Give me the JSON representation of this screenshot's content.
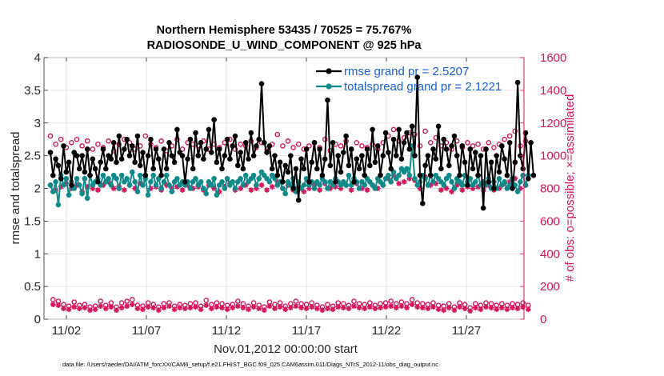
{
  "chart_data": {
    "type": "line",
    "title": "Northern Hemisphere 53435 / 70525 = 75.767%",
    "subtitle": "RADIOSONDE_U_WIND_COMPONENT @ 925 hPa",
    "xlabel": "Nov.01,2012 00:00:00 start",
    "ylabel": "rmse and totalspread",
    "y2label": "# of obs: o=possible; ×=assimilated",
    "footnote": "data file: /Users/raeder/DAI/ATM_forcXX/CAM6_setup/f.e21.FHIST_BGC.f09_025.CAM6assim.011/Diags_NTrS_2012-11/obs_diag_output.nc",
    "xlim": [
      0.6,
      30.6
    ],
    "ylim": [
      0,
      4
    ],
    "y2lim": [
      0,
      1600
    ],
    "x_tick_values": [
      2,
      7,
      12,
      17,
      22,
      27
    ],
    "x_tick_labels": [
      "11/02",
      "11/07",
      "11/12",
      "11/17",
      "11/22",
      "11/27"
    ],
    "y_ticks": [
      "0",
      "0.5",
      "1",
      "1.5",
      "2",
      "2.5",
      "3",
      "3.5",
      "4"
    ],
    "y2_ticks": [
      "0",
      "200",
      "400",
      "600",
      "800",
      "1000",
      "1200",
      "1400",
      "1600"
    ],
    "grid": true,
    "legend_position": "top-right",
    "colors": {
      "rmse": "#000000",
      "spread": "#0f8a8a",
      "obs": "#d6155c",
      "legend_text": "#1a5fd6"
    },
    "series": [
      {
        "name": "rmse grand pr = 2.5207",
        "axis": "left",
        "values": [
          2.55,
          2.2,
          2.45,
          2.35,
          2.15,
          2.65,
          2.25,
          2.4,
          2.05,
          2.55,
          2.5,
          2.3,
          2.5,
          2.25,
          2.6,
          2.2,
          2.45,
          2.3,
          2.1,
          2.4,
          2.6,
          2.3,
          2.5,
          2.45,
          2.7,
          2.4,
          2.8,
          2.45,
          2.6,
          2.75,
          2.5,
          2.65,
          2.4,
          2.8,
          2.35,
          2.55,
          2.2,
          2.5,
          2.75,
          2.3,
          2.6,
          2.45,
          2.2,
          2.6,
          2.3,
          2.7,
          2.5,
          2.4,
          2.9,
          2.55,
          2.5,
          2.1,
          2.45,
          2.75,
          2.3,
          2.85,
          2.5,
          2.7,
          2.45,
          2.6,
          2.9,
          2.55,
          3.05,
          2.4,
          2.6,
          2.3,
          2.5,
          2.75,
          2.45,
          2.65,
          2.8,
          2.35,
          2.55,
          2.3,
          2.7,
          2.45,
          2.85,
          2.5,
          2.65,
          2.75,
          3.6,
          2.7,
          2.55,
          2.65,
          2.3,
          2.5,
          2.2,
          2.4,
          2.1,
          2.35,
          2.25,
          2.5,
          2.0,
          2.3,
          1.82,
          2.45,
          2.3,
          2.6,
          2.1,
          2.4,
          2.7,
          2.3,
          2.6,
          2.2,
          2.45,
          3.35,
          2.35,
          2.7,
          2.1,
          2.5,
          2.25,
          2.55,
          2.8,
          2.35,
          2.6,
          2.1,
          2.45,
          2.3,
          2.5,
          2.2,
          2.6,
          2.35,
          2.9,
          2.4,
          2.65,
          2.2,
          2.5,
          2.85,
          2.55,
          2.3,
          2.75,
          2.5,
          2.9,
          2.45,
          2.7,
          2.85,
          2.6,
          2.95,
          2.5,
          3.7,
          2.2,
          1.77,
          2.35,
          2.5,
          2.2,
          2.6,
          2.45,
          2.95,
          2.3,
          2.75,
          2.6,
          2.35,
          2.65,
          2.8,
          2.5,
          2.2,
          2.65,
          2.4,
          2.05,
          2.6,
          2.3,
          2.55,
          2.2,
          2.5,
          1.7,
          2.6,
          2.1,
          2.4,
          2.0,
          2.5,
          2.25,
          2.65,
          2.45,
          2.2,
          2.7,
          2.0,
          2.4,
          3.62,
          2.5,
          2.3,
          2.85,
          2.15,
          2.7,
          2.2
        ]
      },
      {
        "name": "totalspread grand pr = 2.1221",
        "axis": "left",
        "values": [
          2.05,
          1.95,
          2.1,
          1.75,
          2.2,
          2.05,
          2.15,
          1.9,
          2.1,
          2.0,
          2.15,
          2.05,
          1.92,
          2.15,
          1.85,
          2.2,
          2.05,
          2.1,
          2.15,
          2.05,
          2.2,
          2.1,
          2.15,
          2.05,
          2.2,
          2.15,
          2.0,
          2.2,
          2.1,
          2.15,
          2.05,
          2.25,
          2.1,
          1.95,
          2.2,
          2.05,
          2.15,
          1.9,
          2.1,
          2.2,
          2.05,
          2.15,
          2.0,
          2.1,
          2.2,
          2.05,
          1.95,
          2.1,
          2.15,
          2.05,
          2.1,
          2.05,
          2.1,
          2.0,
          2.1,
          2.15,
          2.05,
          2.1,
          2.0,
          1.92,
          2.1,
          2.05,
          2.15,
          1.9,
          2.05,
          2.1,
          2.0,
          2.15,
          2.05,
          2.1,
          2.0,
          2.1,
          2.15,
          2.05,
          2.2,
          2.1,
          2.15,
          2.2,
          2.05,
          2.15,
          2.25,
          2.2,
          2.15,
          2.1,
          2.2,
          2.15,
          2.05,
          2.1,
          2.0,
          1.92,
          2.1,
          2.05,
          2.15,
          1.95,
          2.1,
          2.0,
          2.05,
          2.15,
          2.05,
          2.1,
          2.0,
          2.1,
          2.05,
          2.15,
          2.1,
          2.0,
          2.1,
          2.05,
          2.15,
          2.1,
          2.05,
          2.1,
          2.05,
          2.2,
          2.05,
          2.15,
          2.1,
          2.0,
          2.1,
          2.05,
          2.15,
          2.1,
          2.05,
          2.0,
          2.15,
          2.1,
          2.05,
          2.15,
          2.2,
          2.1,
          2.25,
          2.15,
          2.2,
          2.3,
          2.25,
          2.3,
          2.2,
          2.65,
          2.15,
          2.05,
          2.1,
          2.2,
          2.15,
          2.05,
          2.2,
          2.1,
          2.2,
          2.15,
          2.1,
          2.05,
          2.15,
          2.2,
          2.1,
          2.0,
          2.15,
          2.1,
          2.05,
          2.2,
          2.1,
          2.15,
          2.05,
          2.1,
          2.2,
          2.05,
          2.1,
          2.05,
          2.15,
          2.0,
          2.1,
          2.0,
          2.15,
          2.05,
          2.1,
          2.0,
          2.05,
          2.15,
          2.05,
          1.95,
          2.1,
          2.2,
          2.05,
          2.2
        ]
      },
      {
        "name": "possible",
        "axis": "right",
        "marker": "o",
        "values": [
          1120,
          120,
          1070,
          110,
          1100,
          90,
          1050,
          80,
          1080,
          105,
          1100,
          85,
          1060,
          90,
          1090,
          75,
          1040,
          80,
          1070,
          110,
          1050,
          85,
          1090,
          100,
          1030,
          75,
          1070,
          100,
          1100,
          110,
          1080,
          120,
          1040,
          85,
          1060,
          80,
          1120,
          100,
          1070,
          90,
          1050,
          75,
          1090,
          95,
          1030,
          100,
          1060,
          80,
          1100,
          90,
          1040,
          85,
          1080,
          95,
          1070,
          100,
          1060,
          80,
          1090,
          115,
          1040,
          90,
          1070,
          100,
          1050,
          95,
          1080,
          85,
          1100,
          90,
          1040,
          110,
          1070,
          95,
          1060,
          80,
          1090,
          100,
          1050,
          85,
          1080,
          75,
          1040,
          105,
          1070,
          90,
          1130,
          100,
          1060,
          80,
          1090,
          95,
          1050,
          110,
          1070,
          95,
          1040,
          90,
          1060,
          100,
          1080,
          85,
          1050,
          75,
          1100,
          90,
          1030,
          80,
          1070,
          100,
          1060,
          95,
          1090,
          85,
          1040,
          110,
          1080,
          95,
          1060,
          90,
          1050,
          100,
          1070,
          85,
          1040,
          95,
          1080,
          100,
          1120,
          110,
          1160,
          95,
          1090,
          105,
          1110,
          95,
          1140,
          120,
          1130,
          100,
          1060,
          95,
          1150,
          90,
          1080,
          100,
          1110,
          85,
          1060,
          80,
          1080,
          95,
          1040,
          75,
          1090,
          100,
          1050,
          90,
          1080,
          70,
          1060,
          95,
          1070,
          85,
          1040,
          100,
          1080,
          95,
          1050,
          85,
          1070,
          95,
          1100,
          85,
          1120,
          95,
          1150,
          90,
          1060,
          100,
          1090,
          85
        ]
      },
      {
        "name": "assimilated",
        "axis": "right",
        "marker": "*",
        "values": [
          820,
          90,
          790,
          85,
          810,
          65,
          830,
          60,
          800,
          75,
          820,
          65,
          780,
          70,
          810,
          55,
          800,
          60,
          790,
          80,
          820,
          65,
          840,
          75,
          800,
          55,
          810,
          70,
          790,
          80,
          820,
          90,
          800,
          65,
          830,
          60,
          860,
          75,
          800,
          70,
          810,
          55,
          790,
          70,
          820,
          80,
          800,
          60,
          810,
          70,
          790,
          65,
          820,
          70,
          800,
          75,
          810,
          60,
          790,
          85,
          820,
          65,
          800,
          75,
          780,
          70,
          810,
          60,
          830,
          70,
          790,
          80,
          800,
          70,
          820,
          60,
          790,
          75,
          800,
          65,
          820,
          55,
          790,
          80,
          810,
          65,
          840,
          75,
          800,
          60,
          820,
          70,
          790,
          80,
          810,
          70,
          780,
          65,
          800,
          75,
          820,
          65,
          790,
          55,
          830,
          65,
          800,
          60,
          810,
          75,
          800,
          70,
          820,
          65,
          790,
          80,
          830,
          70,
          800,
          65,
          790,
          75,
          820,
          65,
          800,
          70,
          820,
          75,
          860,
          80,
          880,
          70,
          830,
          80,
          840,
          70,
          860,
          90,
          850,
          75,
          800,
          70,
          870,
          65,
          820,
          75,
          830,
          60,
          790,
          55,
          800,
          70,
          780,
          55,
          820,
          75,
          790,
          65,
          810,
          50,
          800,
          70,
          810,
          60,
          790,
          75,
          820,
          70,
          790,
          60,
          800,
          70,
          830,
          60,
          840,
          70,
          860,
          65,
          800,
          75,
          820,
          60
        ]
      }
    ]
  }
}
